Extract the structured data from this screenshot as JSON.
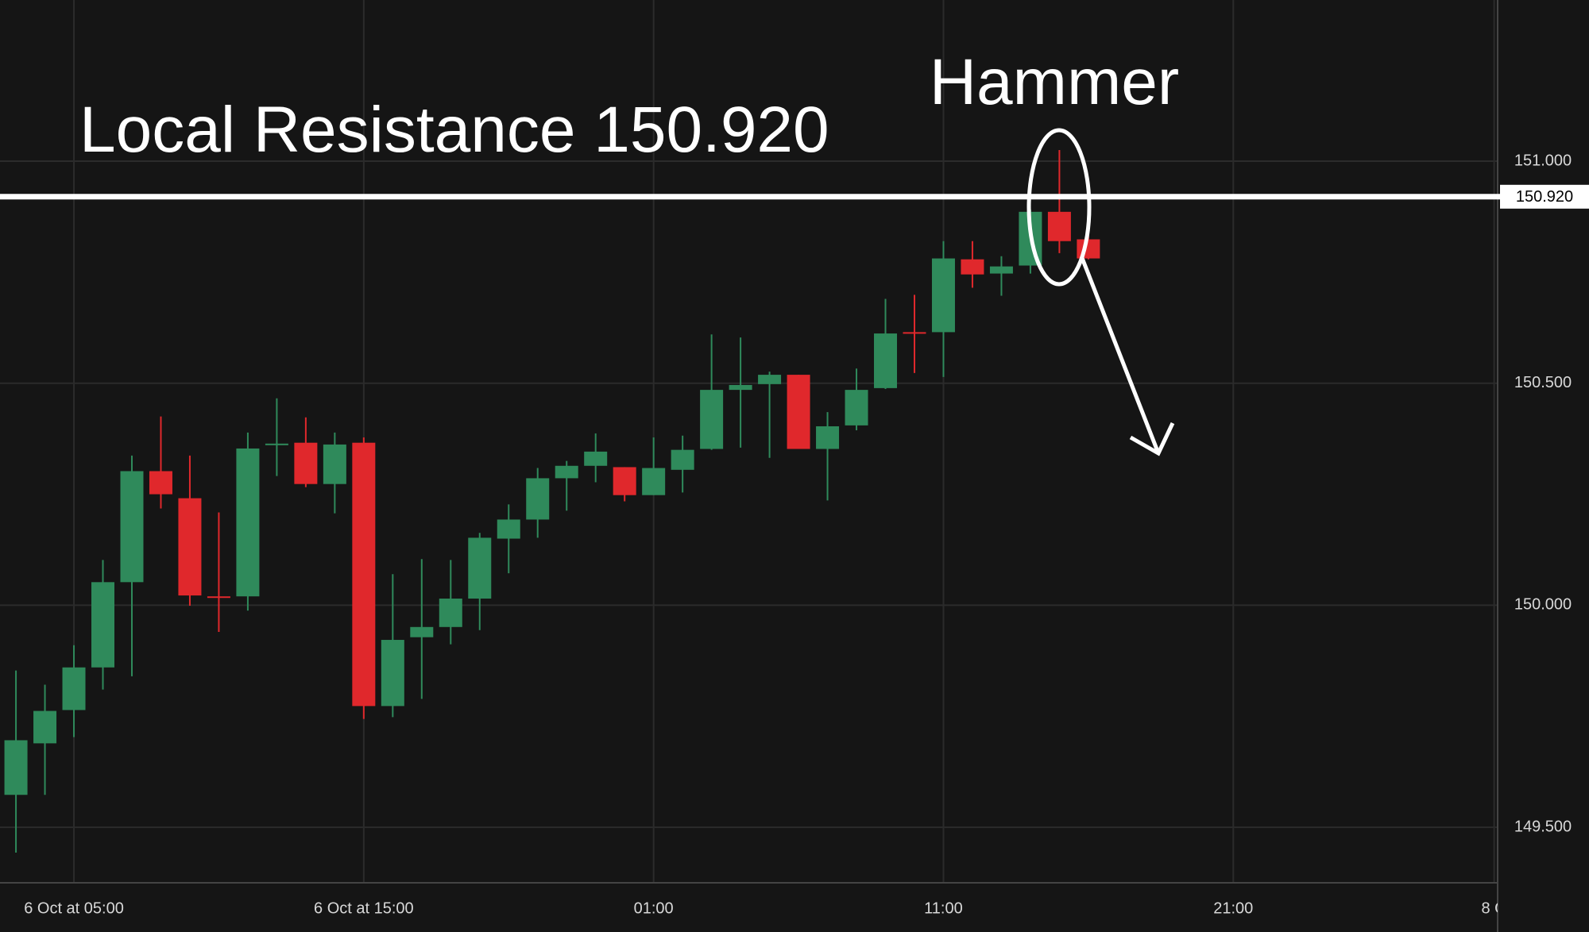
{
  "chart_data": {
    "type": "candlestick",
    "annotations": [
      "Local Resistance 150.920",
      "Hammer"
    ],
    "resistance": {
      "value": 150.92,
      "label": "150.920"
    },
    "x": [
      3,
      4,
      5,
      6,
      7,
      8,
      9,
      10,
      11,
      12,
      13,
      14,
      15,
      16,
      17,
      18,
      19,
      20,
      21,
      22,
      23,
      24,
      25,
      26,
      27,
      28,
      29,
      30,
      31,
      32,
      33,
      34,
      35,
      36,
      37,
      38,
      39,
      40
    ],
    "open": [
      149.573,
      149.689,
      149.764,
      149.86,
      150.052,
      150.302,
      150.241,
      150.02,
      150.02,
      150.362,
      150.366,
      150.273,
      150.366,
      149.773,
      149.928,
      149.951,
      150.015,
      150.15,
      150.193,
      150.286,
      150.314,
      150.311,
      150.248,
      150.305,
      150.352,
      150.485,
      150.498,
      150.519,
      150.352,
      150.405,
      150.489,
      150.615,
      150.615,
      150.779,
      150.747,
      150.765,
      150.886,
      150.824
    ],
    "high": [
      149.853,
      149.821,
      149.91,
      150.102,
      150.337,
      150.425,
      150.337,
      150.209,
      150.389,
      150.466,
      150.423,
      150.389,
      150.378,
      150.07,
      150.104,
      150.102,
      150.163,
      150.227,
      150.309,
      150.325,
      150.387,
      150.311,
      150.378,
      150.382,
      150.61,
      150.603,
      150.526,
      150.519,
      150.435,
      150.533,
      150.69,
      150.699,
      150.82,
      150.82,
      150.786,
      150.891,
      151.025,
      150.831
    ],
    "low": [
      149.443,
      149.573,
      149.703,
      149.81,
      149.84,
      150.218,
      149.999,
      149.94,
      149.988,
      150.291,
      150.266,
      150.207,
      149.744,
      149.748,
      149.789,
      149.912,
      149.944,
      150.072,
      150.152,
      150.213,
      150.277,
      150.234,
      150.248,
      150.254,
      150.35,
      150.355,
      150.332,
      150.352,
      150.236,
      150.394,
      150.487,
      150.523,
      150.514,
      150.715,
      150.697,
      150.747,
      150.793,
      150.779
    ],
    "close": [
      149.696,
      149.762,
      149.86,
      150.052,
      150.302,
      150.25,
      150.022,
      150.018,
      150.353,
      150.364,
      150.273,
      150.362,
      149.773,
      149.922,
      149.951,
      150.015,
      150.152,
      150.193,
      150.286,
      150.314,
      150.346,
      150.248,
      150.309,
      150.35,
      150.485,
      150.496,
      150.519,
      150.352,
      150.403,
      150.485,
      150.612,
      150.613,
      150.781,
      150.745,
      150.763,
      150.886,
      150.82,
      150.781
    ],
    "up_color": "#2f8a5b",
    "down_color": "#e0282c",
    "xlim": [
      2.45,
      54.12
    ],
    "ylim": [
      149.375,
      151.363
    ],
    "xticks": [
      {
        "value": 5,
        "label": "6 Oct at 05:00"
      },
      {
        "value": 15,
        "label": "6 Oct at 15:00"
      },
      {
        "value": 25,
        "label": "01:00"
      },
      {
        "value": 35,
        "label": "11:00"
      },
      {
        "value": 45,
        "label": "21:00"
      },
      {
        "value": 54,
        "label": "8 O"
      }
    ],
    "yticks": [
      {
        "value": 149.5,
        "label": "149.500"
      },
      {
        "value": 150,
        "label": "150.000"
      },
      {
        "value": 150.5,
        "label": "150.500"
      },
      {
        "value": 151,
        "label": "151.000"
      }
    ],
    "grid": true
  }
}
